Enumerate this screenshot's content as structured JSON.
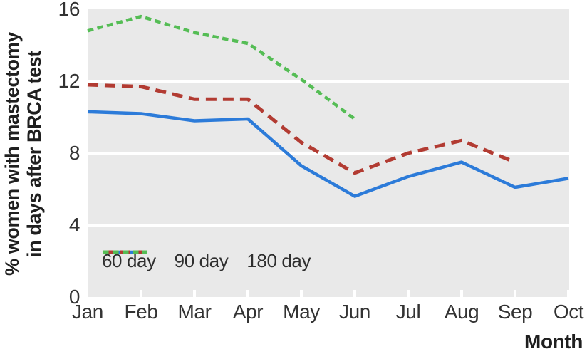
{
  "figure": {
    "y_axis_title_line1": "% women with mastectomy",
    "y_axis_title_line2": "in days after BRCA test",
    "x_axis_title": "Month"
  },
  "chart_data": {
    "type": "line",
    "title": "",
    "xlabel": "Month",
    "ylabel": "% women with mastectomy in days after BRCA test",
    "categories": [
      "Jan",
      "Feb",
      "Mar",
      "Apr",
      "May",
      "Jun",
      "Jul",
      "Aug",
      "Sep",
      "Oct"
    ],
    "y_ticks": [
      0,
      4,
      8,
      12,
      16
    ],
    "ylim": [
      0,
      16
    ],
    "grid": "horizontal white gridlines on light gray panel",
    "legend_position": "inside bottom-left",
    "series": [
      {
        "name": "60 day",
        "color": "#2c7bd9",
        "style": "solid",
        "values": [
          10.3,
          10.2,
          9.8,
          9.9,
          7.3,
          5.6,
          6.7,
          7.5,
          6.1,
          6.6
        ]
      },
      {
        "name": "90 day",
        "color": "#b23b32",
        "style": "dashed",
        "values": [
          11.8,
          11.7,
          11.0,
          11.0,
          8.6,
          6.9,
          8.0,
          8.7,
          7.5,
          null
        ]
      },
      {
        "name": "180 day",
        "color": "#55bd55",
        "style": "short-dashed",
        "values": [
          14.8,
          15.6,
          14.7,
          14.1,
          12.1,
          9.9,
          null,
          null,
          null,
          null
        ]
      }
    ],
    "colors": {
      "panel_bg": "#e9e9e9",
      "gridline": "#ffffff",
      "tick_label": "#333333",
      "axis_title": "#1f1f1f"
    }
  }
}
